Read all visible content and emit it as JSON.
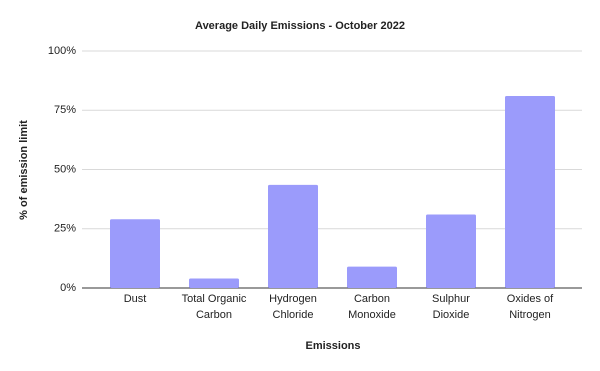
{
  "chart_data": {
    "type": "bar",
    "title": "Average Daily Emissions - October 2022",
    "x_label": "Emissions",
    "y_label": "% of emission limit",
    "categories": [
      "Dust",
      "Total Organic Carbon",
      "Hydrogen Chloride",
      "Carbon Monoxide",
      "Sulphur Dioxide",
      "Oxides of Nitrogen"
    ],
    "values": [
      29,
      4,
      43.5,
      9,
      31,
      81
    ],
    "color": "#9b9bfb",
    "ylim": [
      0,
      100
    ],
    "yticks": [
      {
        "value": 0,
        "label": "0%"
      },
      {
        "value": 25,
        "label": "25%"
      },
      {
        "value": 50,
        "label": "50%"
      },
      {
        "value": 75,
        "label": "75%"
      },
      {
        "value": 100,
        "label": "100%"
      }
    ],
    "grid": true
  }
}
